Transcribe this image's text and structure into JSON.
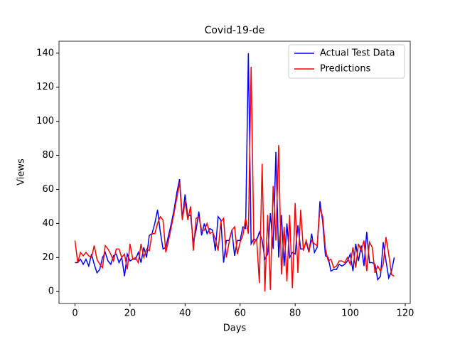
{
  "chart_data": {
    "type": "line",
    "title": "Covid-19-de",
    "x_label": "Days",
    "y_label": "Views",
    "x": [
      0,
      1,
      2,
      3,
      4,
      5,
      6,
      7,
      8,
      9,
      10,
      11,
      12,
      13,
      14,
      15,
      16,
      17,
      18,
      19,
      20,
      21,
      22,
      23,
      24,
      25,
      26,
      27,
      28,
      29,
      30,
      31,
      32,
      33,
      34,
      35,
      36,
      37,
      38,
      39,
      40,
      41,
      42,
      43,
      44,
      45,
      46,
      47,
      48,
      49,
      50,
      51,
      52,
      53,
      54,
      55,
      56,
      57,
      58,
      59,
      60,
      61,
      62,
      63,
      64,
      65,
      66,
      67,
      68,
      69,
      70,
      71,
      72,
      73,
      74,
      75,
      76,
      77,
      78,
      79,
      80,
      81,
      82,
      83,
      84,
      85,
      86,
      87,
      88,
      89,
      90,
      91,
      92,
      93,
      94,
      95,
      96,
      97,
      98,
      99,
      100,
      101,
      102,
      103,
      104,
      105,
      106,
      107,
      108,
      109,
      110,
      111,
      112,
      113,
      114,
      115,
      116
    ],
    "series": [
      {
        "name": "Actual Test Data",
        "color": "#0000ff",
        "values": [
          17,
          17,
          19,
          16,
          19,
          15,
          22,
          16,
          11,
          13,
          20,
          23,
          18,
          16,
          21,
          22,
          17,
          20,
          9,
          22,
          18,
          19,
          19,
          23,
          17,
          26,
          20,
          33,
          34,
          40,
          48,
          35,
          25,
          26,
          33,
          40,
          48,
          58,
          66,
          43,
          57,
          44,
          45,
          29,
          36,
          47,
          33,
          40,
          34,
          37,
          36,
          24,
          44,
          42,
          17,
          30,
          30,
          36,
          21,
          30,
          30,
          38,
          37,
          140,
          28,
          31,
          30,
          35,
          30,
          19,
          22,
          46,
          25,
          82,
          20,
          45,
          15,
          40,
          20,
          23,
          22,
          39,
          25,
          25,
          29,
          23,
          34,
          23,
          26,
          53,
          41,
          21,
          20,
          12,
          13,
          13,
          16,
          15,
          16,
          18,
          22,
          12,
          28,
          18,
          27,
          15,
          35,
          17,
          17,
          16,
          7,
          9,
          29,
          18,
          8,
          12,
          20
        ]
      },
      {
        "name": "Predictions",
        "color": "#ff0000",
        "values": [
          30,
          17,
          23,
          21,
          23,
          21,
          20,
          27,
          19,
          16,
          14,
          27,
          25,
          22,
          18,
          25,
          25,
          20,
          22,
          13,
          28,
          19,
          20,
          17,
          28,
          20,
          25,
          24,
          34,
          34,
          40,
          44,
          42,
          23,
          30,
          38,
          46,
          55,
          64,
          42,
          53,
          42,
          50,
          24,
          43,
          44,
          36,
          36,
          40,
          34,
          35,
          31,
          24,
          41,
          43,
          20,
          29,
          36,
          38,
          22,
          29,
          33,
          43,
          34,
          132,
          28,
          31,
          5,
          75,
          0,
          45,
          1,
          62,
          30,
          86,
          10,
          38,
          6,
          45,
          2,
          52,
          11,
          48,
          24,
          30,
          24,
          30,
          28,
          27,
          49,
          44,
          25,
          18,
          19,
          14,
          15,
          18,
          18,
          17,
          20,
          16,
          26,
          14,
          28,
          24,
          30,
          12,
          29,
          26,
          11,
          15,
          12,
          16,
          32,
          22,
          10,
          9
        ]
      }
    ],
    "xlim": [
      -5.8,
      121.8
    ],
    "ylim": [
      -7,
      147
    ],
    "xticks": [
      0,
      20,
      40,
      60,
      80,
      100,
      120
    ],
    "yticks": [
      0,
      20,
      40,
      60,
      80,
      100,
      120,
      140
    ],
    "legend": "upper right"
  }
}
